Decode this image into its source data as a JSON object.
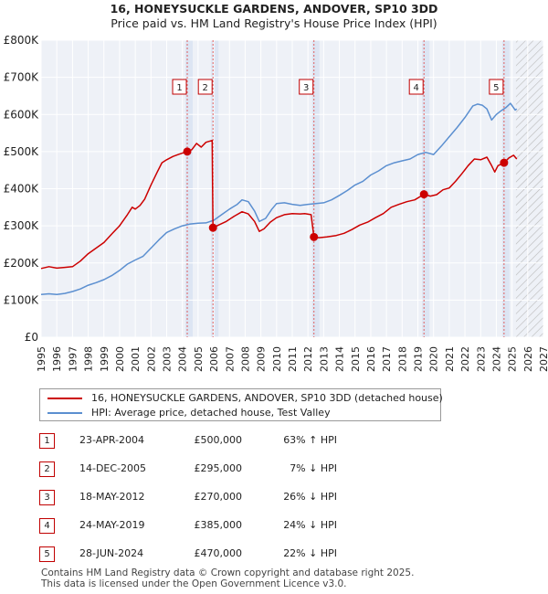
{
  "chart_data": {
    "type": "line",
    "title": "16, HONEYSUCKLE GARDENS, ANDOVER, SP10 3DD",
    "subtitle": "Price paid vs. HM Land Registry's House Price Index (HPI)",
    "xlim": [
      1995,
      2027
    ],
    "ylim": [
      0,
      800000
    ],
    "y_ticks": [
      0,
      100000,
      200000,
      300000,
      400000,
      500000,
      600000,
      700000,
      800000
    ],
    "y_tick_labels": [
      "£0",
      "£100K",
      "£200K",
      "£300K",
      "£400K",
      "£500K",
      "£600K",
      "£700K",
      "£800K"
    ],
    "x_ticks": [
      1995,
      1996,
      1997,
      1998,
      1999,
      2000,
      2001,
      2002,
      2003,
      2004,
      2005,
      2006,
      2007,
      2008,
      2009,
      2010,
      2011,
      2012,
      2013,
      2014,
      2015,
      2016,
      2017,
      2018,
      2019,
      2020,
      2021,
      2022,
      2023,
      2024,
      2025,
      2026,
      2027
    ],
    "x_tick_labels": [
      "1995",
      "1996",
      "1997",
      "1998",
      "1999",
      "2000",
      "2001",
      "2002",
      "2003",
      "2004",
      "2005",
      "2006",
      "2007",
      "2008",
      "2009",
      "2010",
      "2011",
      "2012",
      "2013",
      "2014",
      "2015",
      "2016",
      "2017",
      "2018",
      "2019",
      "2020",
      "2021",
      "2022",
      "2023",
      "2024",
      "2025",
      "2026",
      "2027"
    ],
    "grid": true,
    "hatched_from": 2025.25,
    "series": [
      {
        "name": "16, HONEYSUCKLE GARDENS, ANDOVER, SP10 3DD (detached house)",
        "color": "#cc0000",
        "points": [
          [
            1995.0,
            185000
          ],
          [
            1995.5,
            190000
          ],
          [
            1996.0,
            186000
          ],
          [
            1996.5,
            188000
          ],
          [
            1997.0,
            190000
          ],
          [
            1997.5,
            205000
          ],
          [
            1998.0,
            225000
          ],
          [
            1998.5,
            240000
          ],
          [
            1999.0,
            255000
          ],
          [
            1999.5,
            278000
          ],
          [
            2000.0,
            300000
          ],
          [
            2000.5,
            330000
          ],
          [
            2000.8,
            350000
          ],
          [
            2001.0,
            345000
          ],
          [
            2001.3,
            355000
          ],
          [
            2001.6,
            372000
          ],
          [
            2002.0,
            410000
          ],
          [
            2002.4,
            445000
          ],
          [
            2002.7,
            470000
          ],
          [
            2003.0,
            478000
          ],
          [
            2003.4,
            487000
          ],
          [
            2003.8,
            493000
          ],
          [
            2004.31,
            500000
          ],
          [
            2004.6,
            505000
          ],
          [
            2004.9,
            522000
          ],
          [
            2005.2,
            512000
          ],
          [
            2005.5,
            525000
          ],
          [
            2005.9,
            530000
          ],
          [
            2005.95,
            295000
          ],
          [
            2006.3,
            302000
          ],
          [
            2006.8,
            312000
          ],
          [
            2007.3,
            326000
          ],
          [
            2007.8,
            338000
          ],
          [
            2008.2,
            332000
          ],
          [
            2008.6,
            312000
          ],
          [
            2008.9,
            285000
          ],
          [
            2009.2,
            292000
          ],
          [
            2009.6,
            310000
          ],
          [
            2010.0,
            322000
          ],
          [
            2010.5,
            330000
          ],
          [
            2011.0,
            333000
          ],
          [
            2011.5,
            332000
          ],
          [
            2011.8,
            333000
          ],
          [
            2012.2,
            330000
          ],
          [
            2012.38,
            270000
          ],
          [
            2012.7,
            268000
          ],
          [
            2013.2,
            270000
          ],
          [
            2013.8,
            274000
          ],
          [
            2014.3,
            280000
          ],
          [
            2014.8,
            290000
          ],
          [
            2015.3,
            302000
          ],
          [
            2015.8,
            310000
          ],
          [
            2016.3,
            322000
          ],
          [
            2016.8,
            333000
          ],
          [
            2017.3,
            350000
          ],
          [
            2017.8,
            358000
          ],
          [
            2018.3,
            365000
          ],
          [
            2018.8,
            370000
          ],
          [
            2019.39,
            385000
          ],
          [
            2019.8,
            380000
          ],
          [
            2020.2,
            384000
          ],
          [
            2020.6,
            397000
          ],
          [
            2021.0,
            402000
          ],
          [
            2021.4,
            420000
          ],
          [
            2021.8,
            440000
          ],
          [
            2022.2,
            462000
          ],
          [
            2022.6,
            480000
          ],
          [
            2023.0,
            478000
          ],
          [
            2023.4,
            485000
          ],
          [
            2023.7,
            462000
          ],
          [
            2023.9,
            445000
          ],
          [
            2024.1,
            462000
          ],
          [
            2024.49,
            470000
          ],
          [
            2024.8,
            483000
          ],
          [
            2025.1,
            490000
          ],
          [
            2025.3,
            480000
          ]
        ]
      },
      {
        "name": "HPI: Average price, detached house, Test Valley",
        "color": "#5b8fd0",
        "points": [
          [
            1995.0,
            115000
          ],
          [
            1995.5,
            117000
          ],
          [
            1996.0,
            115000
          ],
          [
            1996.5,
            118000
          ],
          [
            1997.0,
            123000
          ],
          [
            1997.5,
            130000
          ],
          [
            1998.0,
            140000
          ],
          [
            1998.5,
            147000
          ],
          [
            1999.0,
            155000
          ],
          [
            1999.5,
            166000
          ],
          [
            2000.0,
            180000
          ],
          [
            2000.5,
            197000
          ],
          [
            2001.0,
            208000
          ],
          [
            2001.5,
            218000
          ],
          [
            2002.0,
            240000
          ],
          [
            2002.5,
            262000
          ],
          [
            2003.0,
            282000
          ],
          [
            2003.5,
            292000
          ],
          [
            2004.0,
            300000
          ],
          [
            2004.5,
            305000
          ],
          [
            2005.0,
            307000
          ],
          [
            2005.5,
            308000
          ],
          [
            2006.0,
            315000
          ],
          [
            2006.5,
            330000
          ],
          [
            2007.0,
            345000
          ],
          [
            2007.5,
            358000
          ],
          [
            2007.8,
            370000
          ],
          [
            2008.2,
            365000
          ],
          [
            2008.6,
            340000
          ],
          [
            2008.9,
            312000
          ],
          [
            2009.3,
            320000
          ],
          [
            2009.7,
            345000
          ],
          [
            2010.0,
            360000
          ],
          [
            2010.5,
            362000
          ],
          [
            2011.0,
            358000
          ],
          [
            2011.5,
            355000
          ],
          [
            2012.0,
            358000
          ],
          [
            2012.5,
            360000
          ],
          [
            2013.0,
            362000
          ],
          [
            2013.5,
            370000
          ],
          [
            2014.0,
            382000
          ],
          [
            2014.5,
            395000
          ],
          [
            2015.0,
            410000
          ],
          [
            2015.5,
            420000
          ],
          [
            2016.0,
            437000
          ],
          [
            2016.5,
            448000
          ],
          [
            2017.0,
            462000
          ],
          [
            2017.5,
            470000
          ],
          [
            2018.0,
            475000
          ],
          [
            2018.5,
            480000
          ],
          [
            2019.0,
            492000
          ],
          [
            2019.5,
            498000
          ],
          [
            2020.0,
            492000
          ],
          [
            2020.5,
            515000
          ],
          [
            2021.0,
            540000
          ],
          [
            2021.5,
            565000
          ],
          [
            2022.0,
            592000
          ],
          [
            2022.5,
            623000
          ],
          [
            2022.8,
            628000
          ],
          [
            2023.1,
            625000
          ],
          [
            2023.4,
            615000
          ],
          [
            2023.7,
            585000
          ],
          [
            2024.0,
            600000
          ],
          [
            2024.3,
            610000
          ],
          [
            2024.6,
            618000
          ],
          [
            2024.9,
            630000
          ],
          [
            2025.2,
            612000
          ],
          [
            2025.3,
            615000
          ]
        ]
      }
    ],
    "sales": [
      {
        "label": "1",
        "x": 2004.31,
        "value": 500000
      },
      {
        "label": "2",
        "x": 2005.95,
        "value": 295000
      },
      {
        "label": "3",
        "x": 2012.38,
        "value": 270000
      },
      {
        "label": "4",
        "x": 2019.39,
        "value": 385000
      },
      {
        "label": "5",
        "x": 2024.49,
        "value": 470000
      }
    ]
  },
  "legend": {
    "items": [
      {
        "label": "16, HONEYSUCKLE GARDENS, ANDOVER, SP10 3DD (detached house)",
        "color": "#cc0000"
      },
      {
        "label": "HPI: Average price, detached house, Test Valley",
        "color": "#5b8fd0"
      }
    ]
  },
  "sales_table": [
    {
      "num": "1",
      "date": "23-APR-2004",
      "price": "£500,000",
      "hpi": "63% ↑ HPI"
    },
    {
      "num": "2",
      "date": "14-DEC-2005",
      "price": "£295,000",
      "hpi": "7% ↓ HPI"
    },
    {
      "num": "3",
      "date": "18-MAY-2012",
      "price": "£270,000",
      "hpi": "26% ↓ HPI"
    },
    {
      "num": "4",
      "date": "24-MAY-2019",
      "price": "£385,000",
      "hpi": "24% ↓ HPI"
    },
    {
      "num": "5",
      "date": "28-JUN-2024",
      "price": "£470,000",
      "hpi": "22% ↓ HPI"
    }
  ],
  "footer": {
    "line1": "Contains HM Land Registry data © Crown copyright and database right 2025.",
    "line2": "This data is licensed under the Open Government Licence v3.0."
  }
}
